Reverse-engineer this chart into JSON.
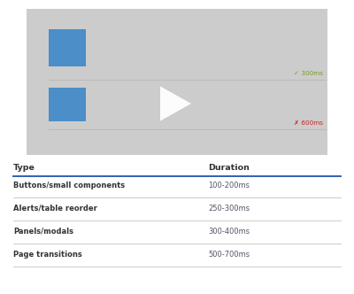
{
  "bg_color": "#ffffff",
  "video_bg": "#cccccc",
  "blue_color": "#4b8ec8",
  "play_color": "#ffffff",
  "line_color": "#bbbbbb",
  "label1_text": "✓ 300ms",
  "label1_color": "#7a9a2a",
  "label2_text": "✗ 600ms",
  "label2_color": "#cc2222",
  "table_header_type": "Type",
  "table_header_duration": "Duration",
  "header_line_color": "#2255aa",
  "table_rows": [
    {
      "type": "Buttons/small components",
      "duration": "100-200ms"
    },
    {
      "type": "Alerts/table reorder",
      "duration": "250-300ms"
    },
    {
      "type": "Panels/modals",
      "duration": "300-400ms"
    },
    {
      "type": "Page transitions",
      "duration": "500-700ms"
    }
  ],
  "row_line_color": "#cccccc",
  "text_color": "#333333",
  "header_text_color": "#333333",
  "duration_color": "#555566"
}
